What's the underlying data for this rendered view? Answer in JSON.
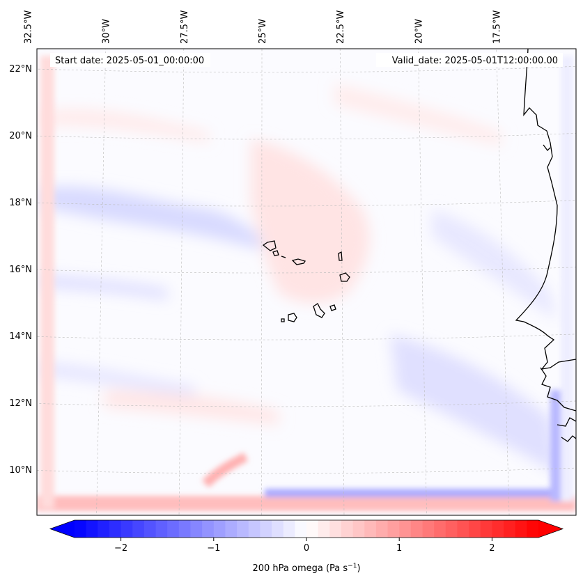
{
  "chart_data": {
    "type": "heatmap",
    "title": "",
    "variable_label": "200 hPa omega (Pa s",
    "variable_unit_exp": "−1",
    "variable_label_tail": ")",
    "start_date_label": "Start date: 2025-05-01_00:00:00",
    "valid_date_label": "Valid_date: 2025-05-01T12:00:00.00",
    "map_extent": {
      "lon": [
        -33.0,
        -15.6
      ],
      "lat": [
        8.8,
        22.8
      ]
    },
    "lon_ticks": [
      {
        "value": -32.5,
        "label": "32.5°W"
      },
      {
        "value": -30.0,
        "label": "30°W"
      },
      {
        "value": -27.5,
        "label": "27.5°W"
      },
      {
        "value": -25.0,
        "label": "25°W"
      },
      {
        "value": -22.5,
        "label": "22.5°W"
      },
      {
        "value": -20.0,
        "label": "20°W"
      },
      {
        "value": -17.5,
        "label": "17.5°W"
      }
    ],
    "lat_ticks": [
      {
        "value": 22,
        "label": "22°N"
      },
      {
        "value": 20,
        "label": "20°N"
      },
      {
        "value": 18,
        "label": "18°N"
      },
      {
        "value": 16,
        "label": "16°N"
      },
      {
        "value": 14,
        "label": "14°N"
      },
      {
        "value": 12,
        "label": "12°N"
      },
      {
        "value": 10,
        "label": "10°N"
      }
    ],
    "colorbar": {
      "range": [
        -2.5,
        2.5
      ],
      "extend": "both",
      "colors": {
        "min": "#0000ff",
        "mid": "#ffffff",
        "max": "#ff0000"
      },
      "ticks": [
        {
          "value": -2,
          "label": "−2"
        },
        {
          "value": -1,
          "label": "−1"
        },
        {
          "value": 0,
          "label": "0"
        },
        {
          "value": 1,
          "label": "1"
        },
        {
          "value": 2,
          "label": "2"
        }
      ]
    },
    "field_features": [
      {
        "kind": "band",
        "value": -0.35,
        "lat_from": 18.6,
        "lat_to": 17.2,
        "lon_from": -32.8,
        "lon_to": -24.8
      },
      {
        "kind": "band",
        "value": -0.3,
        "lat_from": 15.8,
        "lat_to": 15.2,
        "lon_from": -32.8,
        "lon_to": -27.0
      },
      {
        "kind": "band",
        "value": 0.12,
        "lat_from": 19.0,
        "lat_to": 15.0,
        "lon_from": -25.5,
        "lon_to": -20.5
      },
      {
        "kind": "band",
        "value": 0.15,
        "lat_from": 13.5,
        "lat_to": 11.5,
        "lon_from": -30.0,
        "lon_to": -23.0
      },
      {
        "kind": "band",
        "value": -0.25,
        "lat_from": 13.0,
        "lat_to": 10.0,
        "lon_from": -21.5,
        "lon_to": -16.0
      },
      {
        "kind": "edge",
        "value": 0.5,
        "side": "south",
        "lat": 9.2
      },
      {
        "kind": "edge",
        "value": -0.9,
        "side": "south-east",
        "lat": 9.5
      },
      {
        "kind": "edge",
        "value": 0.3,
        "side": "west",
        "lon": -32.6
      }
    ]
  }
}
